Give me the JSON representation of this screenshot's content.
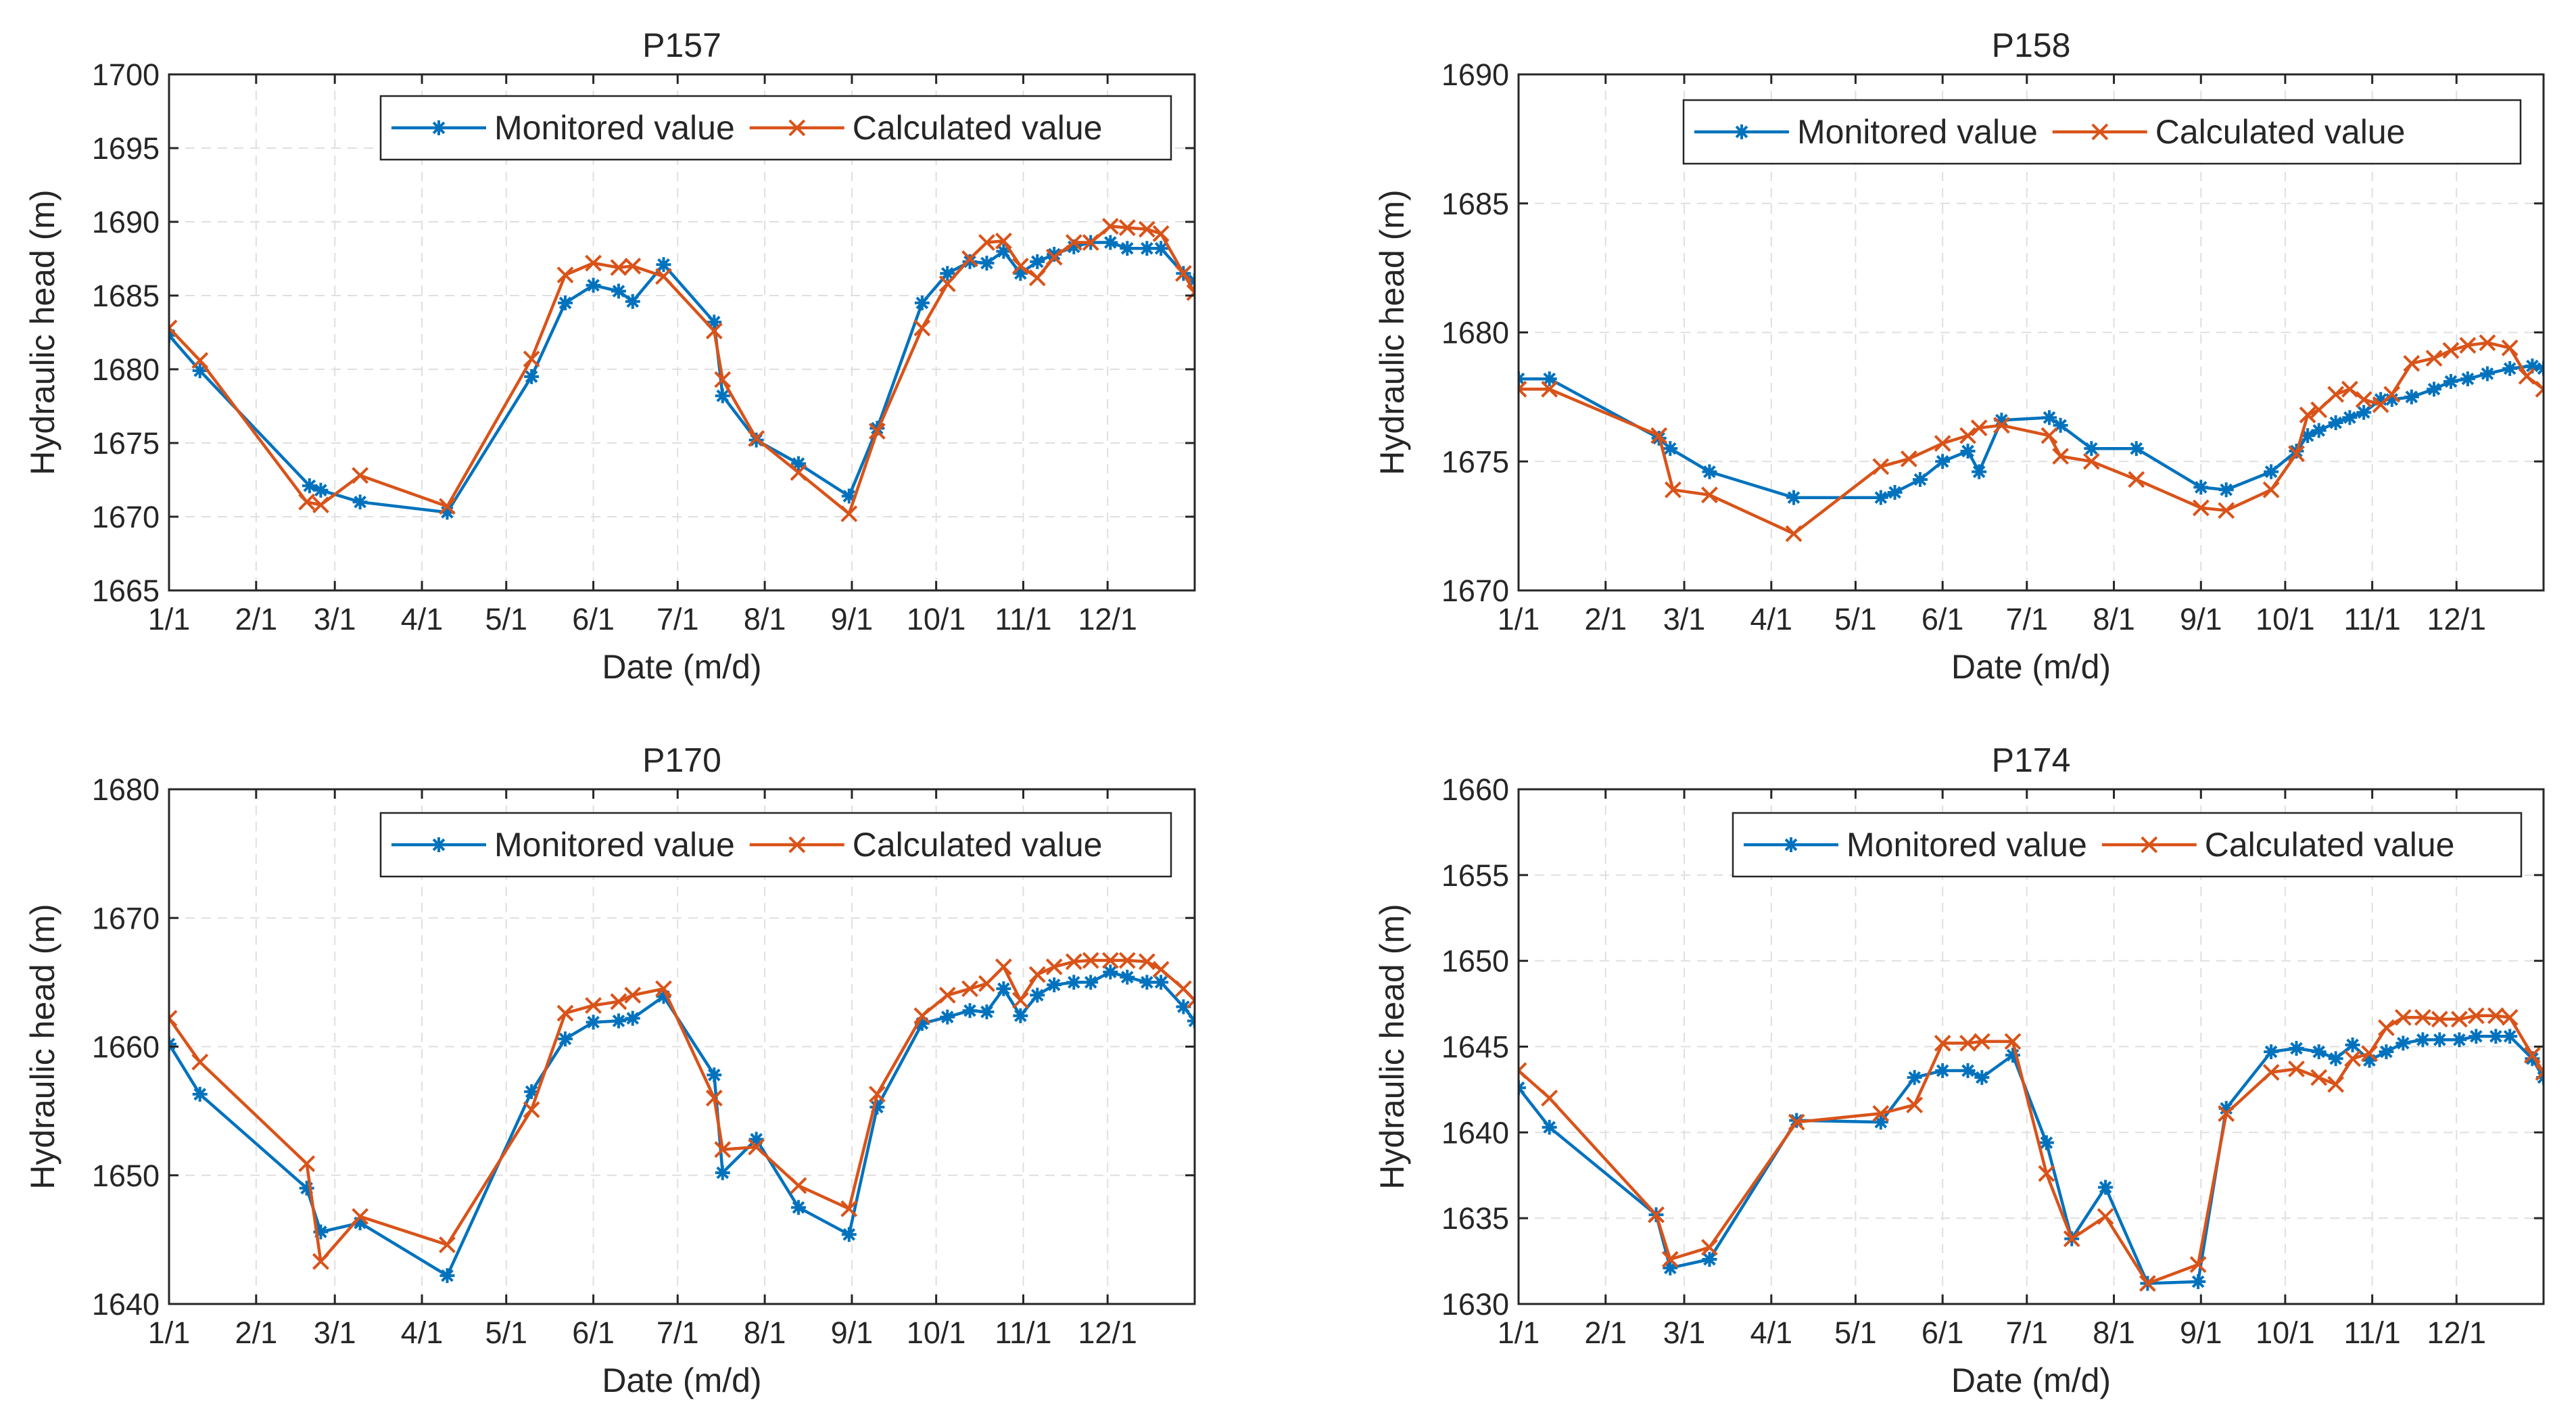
{
  "colors": {
    "monitored": "#0072BD",
    "calculated": "#D95319",
    "grid": "#DFDFDF",
    "axis": "#262626"
  },
  "chart_data": [
    {
      "type": "line",
      "title": "P157",
      "xlabel": "Date (m/d)",
      "ylabel": "Hydraulic head (m)",
      "xlim": [
        0,
        365
      ],
      "ylim": [
        1665,
        1700
      ],
      "x_ticks": [
        0,
        31,
        59,
        90,
        120,
        151,
        181,
        212,
        243,
        273,
        304,
        334
      ],
      "x_tick_labels": [
        "1/1",
        "2/1",
        "3/1",
        "4/1",
        "5/1",
        "6/1",
        "7/1",
        "8/1",
        "9/1",
        "10/1",
        "11/1",
        "12/1"
      ],
      "y_ticks": [
        1665,
        1670,
        1675,
        1680,
        1685,
        1690,
        1695,
        1700
      ],
      "y_tick_labels": [
        "1665",
        "1670",
        "1675",
        "1680",
        "1685",
        "1690",
        "1695",
        "1700"
      ],
      "grid": true,
      "legend": "top-right",
      "series": [
        {
          "name": "Monitored value",
          "marker": "asterisk",
          "x": [
            0,
            11,
            50,
            54,
            68,
            99,
            129,
            141,
            151,
            160,
            165,
            176,
            194,
            197,
            209,
            224,
            242,
            252,
            268,
            277,
            285,
            291,
            297,
            303,
            309,
            315,
            322,
            328,
            335,
            341,
            348,
            353,
            361,
            365
          ],
          "y": [
            1682.3,
            1679.9,
            1672.1,
            1671.8,
            1671.0,
            1670.3,
            1679.5,
            1684.5,
            1685.7,
            1685.3,
            1684.6,
            1687.1,
            1683.2,
            1678.2,
            1675.2,
            1673.6,
            1671.4,
            1676.0,
            1684.5,
            1686.5,
            1687.3,
            1687.2,
            1688.0,
            1686.5,
            1687.3,
            1687.8,
            1688.3,
            1688.6,
            1688.6,
            1688.2,
            1688.2,
            1688.2,
            1686.5,
            1686.0
          ]
        },
        {
          "name": "Calculated value",
          "marker": "x",
          "x": [
            0,
            11,
            49,
            54,
            68,
            99,
            129,
            141,
            151,
            160,
            165,
            176,
            194,
            197,
            209,
            224,
            242,
            252,
            268,
            277,
            285,
            291,
            297,
            303,
            309,
            315,
            322,
            328,
            335,
            341,
            348,
            353,
            361,
            365
          ],
          "y": [
            1682.8,
            1680.6,
            1671.0,
            1670.8,
            1672.8,
            1670.7,
            1680.7,
            1686.4,
            1687.2,
            1686.9,
            1687.0,
            1686.3,
            1682.6,
            1679.3,
            1675.3,
            1673.0,
            1670.2,
            1675.8,
            1682.8,
            1685.8,
            1687.5,
            1688.6,
            1688.7,
            1687.0,
            1686.2,
            1687.6,
            1688.6,
            1688.6,
            1689.7,
            1689.6,
            1689.5,
            1689.2,
            1686.5,
            1685.2
          ]
        }
      ]
    },
    {
      "type": "line",
      "title": "P158",
      "xlabel": "Date (m/d)",
      "ylabel": "Hydraulic head (m)",
      "xlim": [
        0,
        365
      ],
      "ylim": [
        1670,
        1690
      ],
      "x_ticks": [
        0,
        31,
        59,
        90,
        120,
        151,
        181,
        212,
        243,
        273,
        304,
        334
      ],
      "x_tick_labels": [
        "1/1",
        "2/1",
        "3/1",
        "4/1",
        "5/1",
        "6/1",
        "7/1",
        "8/1",
        "9/1",
        "10/1",
        "11/1",
        "12/1"
      ],
      "y_ticks": [
        1670,
        1675,
        1680,
        1685,
        1690
      ],
      "y_tick_labels": [
        "1670",
        "1675",
        "1680",
        "1685",
        "1690"
      ],
      "grid": true,
      "legend": "top-right",
      "series": [
        {
          "name": "Monitored value",
          "marker": "asterisk",
          "x": [
            0,
            11,
            50,
            54,
            68,
            98,
            129,
            134,
            143,
            151,
            160,
            164,
            172,
            189,
            193,
            204,
            220,
            243,
            252,
            268,
            277,
            281,
            285,
            291,
            296,
            301,
            307,
            311,
            318,
            326,
            332,
            338,
            345,
            353,
            361,
            365
          ],
          "y": [
            1678.2,
            1678.2,
            1675.9,
            1675.5,
            1674.6,
            1673.6,
            1673.6,
            1673.8,
            1674.3,
            1675.0,
            1675.4,
            1674.6,
            1676.6,
            1676.7,
            1676.4,
            1675.5,
            1675.5,
            1674.0,
            1673.9,
            1674.6,
            1675.4,
            1676.0,
            1676.2,
            1676.5,
            1676.7,
            1676.9,
            1677.4,
            1677.4,
            1677.5,
            1677.8,
            1678.1,
            1678.2,
            1678.4,
            1678.6,
            1678.7,
            1678.6
          ]
        },
        {
          "name": "Calculated value",
          "marker": "x",
          "x": [
            0,
            11,
            50,
            55,
            68,
            98,
            129,
            139,
            151,
            160,
            164,
            172,
            189,
            193,
            204,
            220,
            243,
            252,
            268,
            277,
            281,
            285,
            291,
            296,
            301,
            307,
            311,
            318,
            326,
            332,
            338,
            345,
            353,
            359,
            365
          ],
          "y": [
            1677.8,
            1677.8,
            1676.0,
            1673.9,
            1673.7,
            1672.2,
            1674.8,
            1675.1,
            1675.7,
            1676.0,
            1676.3,
            1676.4,
            1676.0,
            1675.2,
            1675.0,
            1674.3,
            1673.2,
            1673.1,
            1673.9,
            1675.3,
            1676.8,
            1677.0,
            1677.6,
            1677.8,
            1677.4,
            1677.2,
            1677.6,
            1678.8,
            1679.0,
            1679.3,
            1679.5,
            1679.6,
            1679.4,
            1678.3,
            1677.8
          ]
        }
      ]
    },
    {
      "type": "line",
      "title": "P170",
      "xlabel": "Date (m/d)",
      "ylabel": "Hydraulic head (m)",
      "xlim": [
        0,
        365
      ],
      "ylim": [
        1640,
        1680
      ],
      "x_ticks": [
        0,
        31,
        59,
        90,
        120,
        151,
        181,
        212,
        243,
        273,
        304,
        334
      ],
      "x_tick_labels": [
        "1/1",
        "2/1",
        "3/1",
        "4/1",
        "5/1",
        "6/1",
        "7/1",
        "8/1",
        "9/1",
        "10/1",
        "11/1",
        "12/1"
      ],
      "y_ticks": [
        1640,
        1650,
        1660,
        1670,
        1680
      ],
      "y_tick_labels": [
        "1640",
        "1650",
        "1660",
        "1670",
        "1680"
      ],
      "grid": true,
      "legend": "top-right",
      "series": [
        {
          "name": "Monitored value",
          "marker": "asterisk",
          "x": [
            0,
            11,
            49,
            54,
            68,
            99,
            129,
            141,
            151,
            160,
            165,
            176,
            194,
            197,
            209,
            224,
            242,
            252,
            268,
            277,
            285,
            291,
            297,
            303,
            309,
            315,
            322,
            328,
            335,
            341,
            348,
            353,
            361,
            365
          ],
          "y": [
            1660.2,
            1656.3,
            1649.0,
            1645.6,
            1646.3,
            1642.2,
            1656.5,
            1660.6,
            1661.9,
            1662.0,
            1662.2,
            1663.9,
            1657.8,
            1650.2,
            1652.8,
            1647.5,
            1645.4,
            1655.3,
            1661.8,
            1662.3,
            1662.8,
            1662.7,
            1664.5,
            1662.4,
            1664.0,
            1664.8,
            1665.0,
            1665.0,
            1665.8,
            1665.4,
            1665.0,
            1665.0,
            1663.1,
            1662.0
          ]
        },
        {
          "name": "Calculated value",
          "marker": "x",
          "x": [
            0,
            11,
            49,
            54,
            68,
            99,
            129,
            141,
            151,
            160,
            165,
            176,
            194,
            197,
            209,
            224,
            242,
            252,
            268,
            277,
            285,
            291,
            297,
            303,
            309,
            315,
            322,
            328,
            335,
            341,
            348,
            353,
            361,
            365
          ],
          "y": [
            1662.2,
            1658.8,
            1650.9,
            1643.3,
            1646.8,
            1644.6,
            1655.1,
            1662.6,
            1663.2,
            1663.5,
            1664.0,
            1664.5,
            1656.0,
            1652.0,
            1652.2,
            1649.2,
            1647.4,
            1656.3,
            1662.4,
            1664.0,
            1664.5,
            1664.9,
            1666.2,
            1663.6,
            1665.6,
            1666.2,
            1666.6,
            1666.7,
            1666.7,
            1666.7,
            1666.6,
            1666.0,
            1664.5,
            1663.6
          ]
        }
      ]
    },
    {
      "type": "line",
      "title": "P174",
      "xlabel": "Date (m/d)",
      "ylabel": "Hydraulic head (m)",
      "xlim": [
        0,
        365
      ],
      "ylim": [
        1630,
        1660
      ],
      "x_ticks": [
        0,
        31,
        59,
        90,
        120,
        151,
        181,
        212,
        243,
        273,
        304,
        334
      ],
      "x_tick_labels": [
        "1/1",
        "2/1",
        "3/1",
        "4/1",
        "5/1",
        "6/1",
        "7/1",
        "8/1",
        "9/1",
        "10/1",
        "11/1",
        "12/1"
      ],
      "y_ticks": [
        1630,
        1635,
        1640,
        1645,
        1650,
        1655,
        1660
      ],
      "y_tick_labels": [
        "1630",
        "1635",
        "1640",
        "1645",
        "1650",
        "1655",
        "1660"
      ],
      "grid": true,
      "legend": "top-right",
      "series": [
        {
          "name": "Monitored value",
          "marker": "asterisk",
          "x": [
            0,
            11,
            49,
            54,
            68,
            99,
            129,
            141,
            151,
            160,
            165,
            176,
            188,
            197,
            209,
            224,
            242,
            252,
            268,
            277,
            285,
            291,
            297,
            303,
            309,
            315,
            322,
            328,
            335,
            341,
            348,
            353,
            361,
            365
          ],
          "y": [
            1642.6,
            1640.3,
            1635.2,
            1632.1,
            1632.6,
            1640.7,
            1640.6,
            1643.2,
            1643.6,
            1643.6,
            1643.2,
            1644.5,
            1639.4,
            1633.8,
            1636.8,
            1631.2,
            1631.3,
            1641.4,
            1644.7,
            1644.9,
            1644.7,
            1644.3,
            1645.1,
            1644.2,
            1644.7,
            1645.2,
            1645.4,
            1645.4,
            1645.4,
            1645.6,
            1645.6,
            1645.6,
            1644.3,
            1643.2
          ]
        },
        {
          "name": "Calculated value",
          "marker": "x",
          "x": [
            0,
            11,
            49,
            54,
            68,
            99,
            129,
            141,
            151,
            160,
            165,
            176,
            188,
            197,
            209,
            224,
            242,
            252,
            268,
            277,
            285,
            291,
            297,
            303,
            309,
            315,
            322,
            328,
            335,
            341,
            348,
            353,
            361,
            365
          ],
          "y": [
            1643.6,
            1642.0,
            1635.2,
            1632.6,
            1633.3,
            1640.6,
            1641.1,
            1641.6,
            1645.2,
            1645.2,
            1645.3,
            1645.3,
            1637.6,
            1633.8,
            1635.1,
            1631.2,
            1632.3,
            1641.1,
            1643.5,
            1643.7,
            1643.2,
            1642.8,
            1644.3,
            1644.6,
            1646.1,
            1646.7,
            1646.7,
            1646.6,
            1646.6,
            1646.8,
            1646.8,
            1646.7,
            1644.5,
            1643.5
          ]
        }
      ]
    }
  ]
}
